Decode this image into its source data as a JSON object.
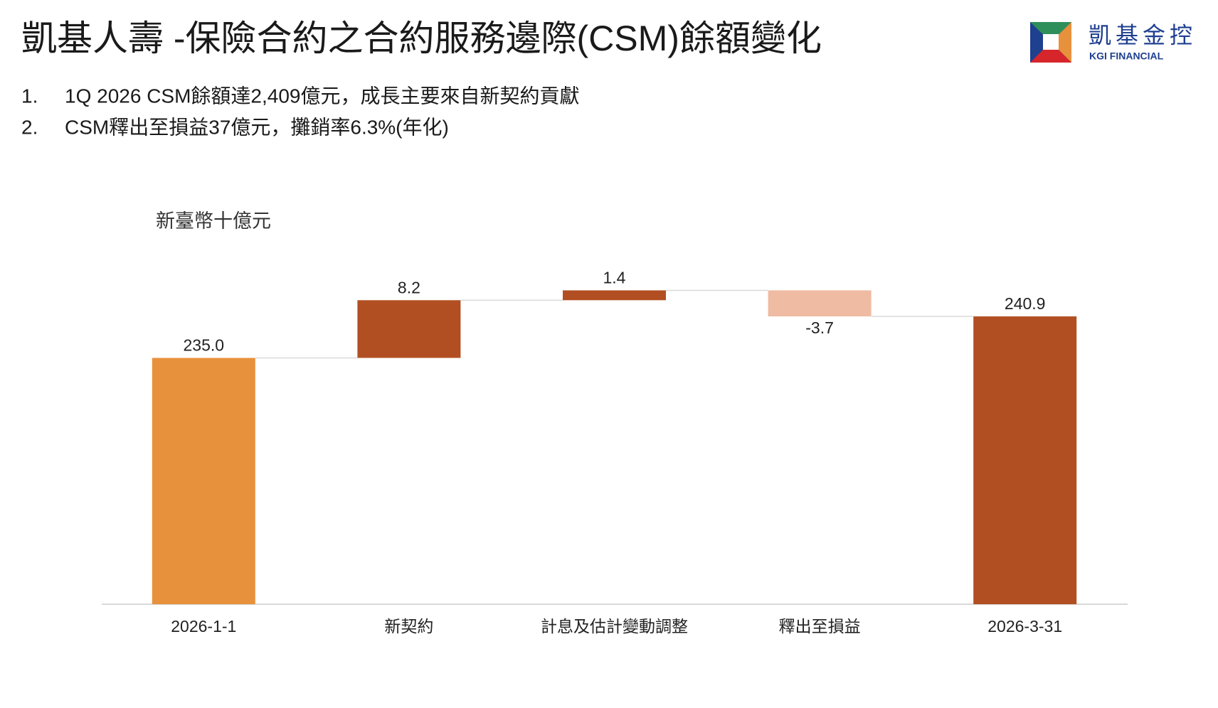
{
  "logo": {
    "name": "凱基金控",
    "subname": "KGI FINANCIAL"
  },
  "chart_data": {
    "type": "waterfall",
    "title": "凱基人壽 -保險合約之合約服務邊際(CSM)餘額變化",
    "notes": [
      {
        "number": "1.",
        "text": "1Q 2026 CSM餘額達2,409億元，成長主要來自新契約貢獻"
      },
      {
        "number": "2.",
        "text": "CSM釋出至損益37億元，攤銷率6.3%(年化)"
      }
    ],
    "unit_label": "新臺幣十億元",
    "categories": [
      "2026-1-1",
      "新契約",
      "計息及估計變動調整",
      "釋出至損益",
      "2026-3-31"
    ],
    "values": [
      235.0,
      8.2,
      1.4,
      -3.7,
      240.9
    ],
    "value_labels": [
      "235.0",
      "8.2",
      "1.4",
      "-3.7",
      "240.9"
    ],
    "totals": [
      true,
      false,
      false,
      false,
      true
    ],
    "colors": [
      "#E8913C",
      "#B14F22",
      "#B14F22",
      "#EFBBA3",
      "#B14F22"
    ],
    "ylim": [
      200,
      250
    ]
  }
}
